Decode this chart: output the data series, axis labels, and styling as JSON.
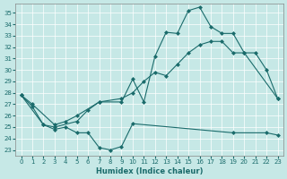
{
  "xlabel": "Humidex (Indice chaleur)",
  "xlim": [
    -0.5,
    23.5
  ],
  "ylim": [
    22.5,
    35.8
  ],
  "yticks": [
    23,
    24,
    25,
    26,
    27,
    28,
    29,
    30,
    31,
    32,
    33,
    34,
    35
  ],
  "xticks": [
    0,
    1,
    2,
    3,
    4,
    5,
    6,
    7,
    8,
    9,
    10,
    11,
    12,
    13,
    14,
    15,
    16,
    17,
    18,
    19,
    20,
    21,
    22,
    23
  ],
  "background_color": "#c6e8e6",
  "line_color": "#1a6b6b",
  "line1_x": [
    0,
    1,
    3,
    4,
    5,
    7,
    9,
    10,
    11,
    12,
    13,
    14,
    15,
    16,
    17,
    18,
    19,
    20,
    21,
    22,
    23
  ],
  "line1_y": [
    27.8,
    27.0,
    25.2,
    25.5,
    26.0,
    27.2,
    27.2,
    29.2,
    27.2,
    31.2,
    33.3,
    33.2,
    35.2,
    35.5,
    33.8,
    33.2,
    33.2,
    31.5,
    31.5,
    30.0,
    27.5
  ],
  "line2_x": [
    0,
    1,
    2,
    3,
    4,
    5,
    6,
    7,
    8,
    9,
    10,
    19,
    22,
    23
  ],
  "line2_y": [
    27.8,
    26.8,
    25.2,
    24.8,
    25.0,
    24.5,
    24.5,
    23.2,
    23.0,
    23.3,
    25.3,
    24.5,
    24.5,
    24.3
  ],
  "line3_x": [
    0,
    2,
    3,
    5,
    6,
    7,
    9,
    10,
    11,
    12,
    13,
    14,
    15,
    16,
    17,
    18,
    19,
    20,
    23
  ],
  "line3_y": [
    27.8,
    25.2,
    25.0,
    25.5,
    26.5,
    27.2,
    27.5,
    28.0,
    29.0,
    29.8,
    29.5,
    30.5,
    31.5,
    32.2,
    32.5,
    32.5,
    31.5,
    31.5,
    27.5
  ]
}
